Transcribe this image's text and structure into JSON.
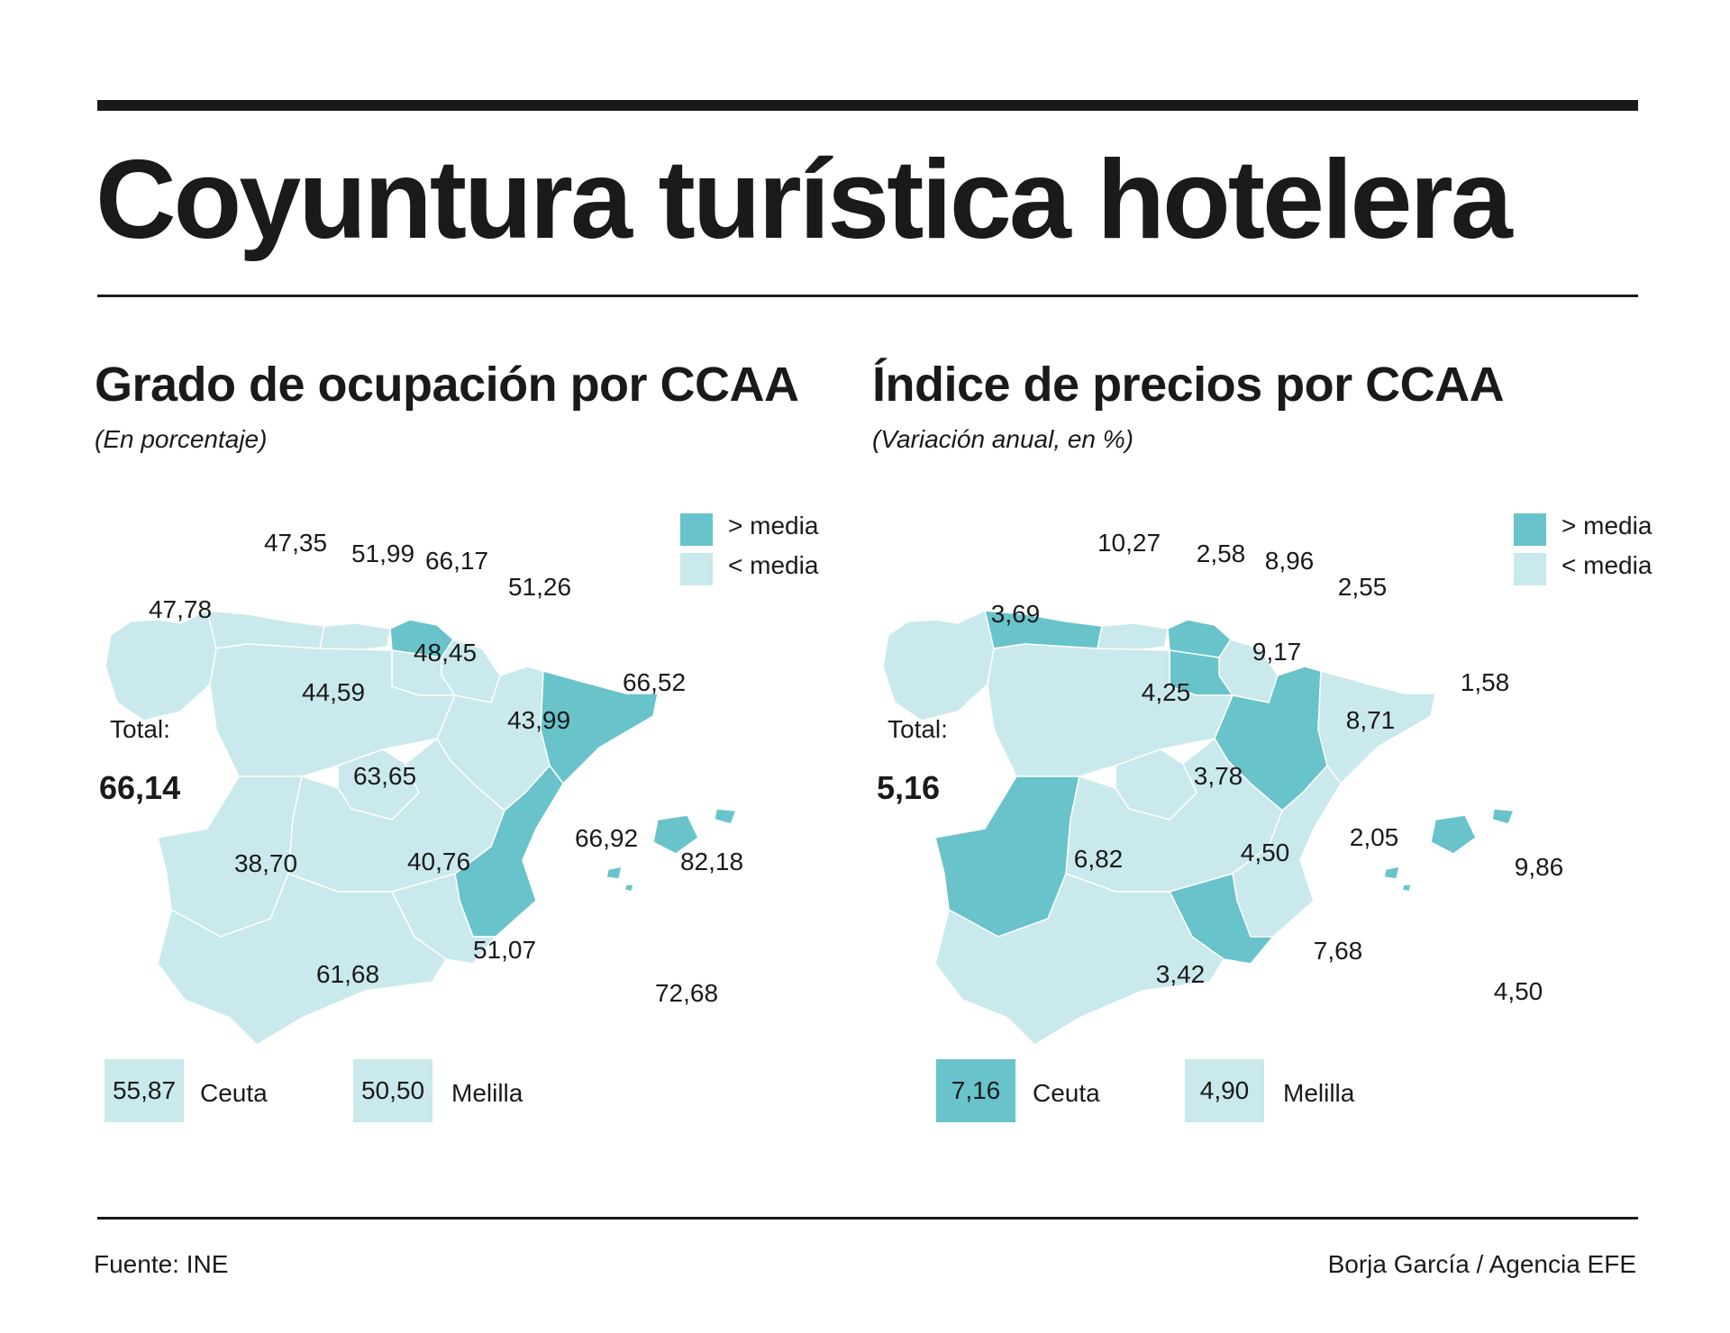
{
  "header": {
    "title": "Coyuntura turística hotelera"
  },
  "colors": {
    "above": "#68c3cb",
    "below": "#c9e9ec",
    "border": "#ffffff",
    "text": "#1a1a1a"
  },
  "legend": {
    "above_label": "> media",
    "below_label": "< media"
  },
  "occupancy": {
    "title": "Grado de ocupación por CCAA",
    "subtitle": "(En porcentaje)",
    "total_label": "Total:",
    "total_value": "66,14",
    "regions": {
      "galicia": {
        "value": "47,78",
        "level": "below"
      },
      "asturias": {
        "value": "47,35",
        "level": "below"
      },
      "cantabria": {
        "value": "51,99",
        "level": "below"
      },
      "pais_vasco": {
        "value": "66,17",
        "level": "above"
      },
      "navarra": {
        "value": "51,26",
        "level": "below"
      },
      "la_rioja": {
        "value": "48,45",
        "level": "below"
      },
      "castilla_leon": {
        "value": "44,59",
        "level": "below"
      },
      "aragon": {
        "value": "43,99",
        "level": "below"
      },
      "cataluna": {
        "value": "66,52",
        "level": "above"
      },
      "madrid": {
        "value": "63,65",
        "level": "below"
      },
      "extremadura": {
        "value": "38,70",
        "level": "below"
      },
      "castilla_mancha": {
        "value": "40,76",
        "level": "below"
      },
      "valencia": {
        "value": "66,92",
        "level": "above"
      },
      "baleares": {
        "value": "82,18",
        "level": "above"
      },
      "murcia": {
        "value": "51,07",
        "level": "below"
      },
      "andalucia": {
        "value": "61,68",
        "level": "below"
      },
      "canarias": {
        "value": "72,68",
        "level": "above"
      }
    },
    "ceuta": {
      "name": "Ceuta",
      "value": "55,87",
      "level": "below"
    },
    "melilla": {
      "name": "Melilla",
      "value": "50,50",
      "level": "below"
    }
  },
  "prices": {
    "title": "Índice de precios por CCAA",
    "subtitle": "(Variación anual, en %)",
    "total_label": "Total:",
    "total_value": "5,16",
    "regions": {
      "galicia": {
        "value": "3,69",
        "level": "below"
      },
      "asturias": {
        "value": "10,27",
        "level": "above"
      },
      "cantabria": {
        "value": "2,58",
        "level": "below"
      },
      "pais_vasco": {
        "value": "8,96",
        "level": "above"
      },
      "navarra": {
        "value": "2,55",
        "level": "below"
      },
      "la_rioja": {
        "value": "9,17",
        "level": "above"
      },
      "castilla_leon": {
        "value": "4,25",
        "level": "below"
      },
      "aragon": {
        "value": "8,71",
        "level": "above"
      },
      "cataluna": {
        "value": "1,58",
        "level": "below"
      },
      "madrid": {
        "value": "3,78",
        "level": "below"
      },
      "extremadura": {
        "value": "6,82",
        "level": "above"
      },
      "castilla_mancha": {
        "value": "4,50",
        "level": "below"
      },
      "valencia": {
        "value": "2,05",
        "level": "below"
      },
      "baleares": {
        "value": "9,86",
        "level": "above"
      },
      "murcia": {
        "value": "7,68",
        "level": "above"
      },
      "andalucia": {
        "value": "3,42",
        "level": "below"
      },
      "canarias": {
        "value": "4,50",
        "level": "below"
      }
    },
    "ceuta": {
      "name": "Ceuta",
      "value": "7,16",
      "level": "above"
    },
    "melilla": {
      "name": "Melilla",
      "value": "4,90",
      "level": "below"
    }
  },
  "footer": {
    "source": "Fuente: INE",
    "credit": "Borja García / Agencia EFE"
  }
}
